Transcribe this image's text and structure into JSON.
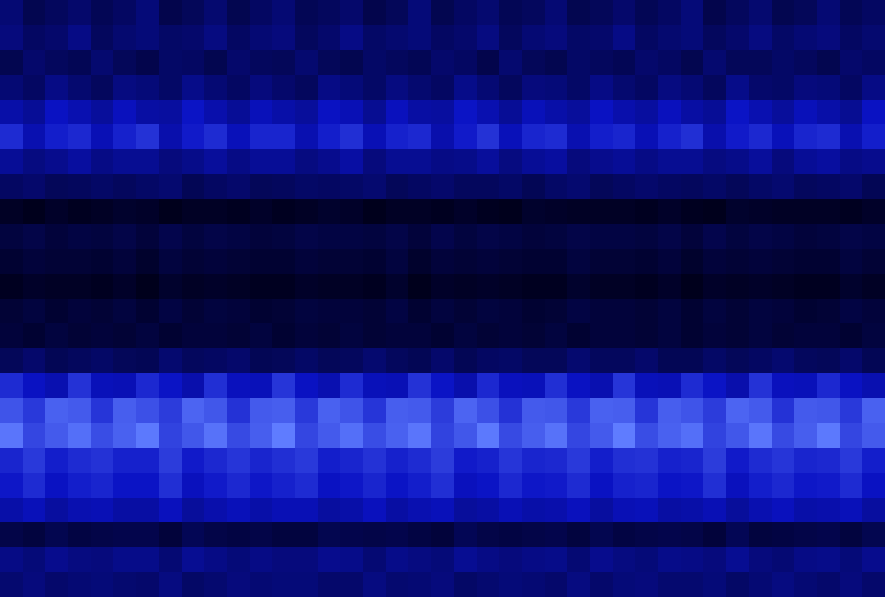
{
  "chart_data": {
    "type": "heatmap",
    "tick_labels": false,
    "cells": [
      [
        32,
        24,
        27,
        30,
        25,
        28,
        33,
        23,
        26,
        31,
        24,
        28,
        32,
        25,
        27,
        30,
        23,
        26,
        33,
        24,
        28,
        31,
        25,
        27,
        32,
        24,
        26,
        30,
        25,
        28,
        33,
        23,
        27,
        31,
        24,
        26,
        32,
        25,
        28
      ],
      [
        34,
        28,
        30,
        36,
        27,
        31,
        33,
        29,
        30,
        35,
        28,
        32,
        34,
        27,
        30,
        36,
        29,
        31,
        33,
        28,
        30,
        35,
        27,
        32,
        34,
        29,
        30,
        36,
        28,
        31,
        33,
        27,
        30,
        35,
        29,
        32,
        34,
        28,
        31
      ],
      [
        24,
        30,
        27,
        25,
        31,
        26,
        23,
        29,
        28,
        24,
        30,
        27,
        26,
        31,
        26,
        24,
        29,
        27,
        25,
        30,
        28,
        23,
        31,
        26,
        24,
        29,
        27,
        25,
        30,
        28,
        24,
        31,
        26,
        26,
        29,
        27,
        24,
        30,
        28
      ],
      [
        32,
        28,
        36,
        31,
        27,
        35,
        33,
        29,
        37,
        32,
        28,
        34,
        30,
        27,
        36,
        33,
        29,
        35,
        31,
        28,
        37,
        32,
        27,
        34,
        33,
        29,
        36,
        31,
        28,
        35,
        32,
        27,
        37,
        30,
        29,
        34,
        33,
        28,
        36
      ],
      [
        44,
        40,
        50,
        46,
        41,
        49,
        43,
        42,
        51,
        45,
        40,
        48,
        44,
        41,
        50,
        47,
        39,
        49,
        43,
        42,
        51,
        46,
        40,
        48,
        44,
        41,
        50,
        45,
        42,
        49,
        43,
        40,
        51,
        46,
        41,
        48,
        44,
        39,
        50
      ],
      [
        58,
        46,
        54,
        57,
        47,
        55,
        60,
        45,
        53,
        58,
        48,
        56,
        56,
        46,
        54,
        59,
        47,
        55,
        57,
        45,
        53,
        60,
        48,
        56,
        58,
        46,
        54,
        56,
        47,
        55,
        59,
        45,
        53,
        57,
        48,
        56,
        58,
        46,
        54
      ],
      [
        40,
        35,
        38,
        42,
        36,
        39,
        39,
        34,
        37,
        41,
        36,
        40,
        40,
        35,
        38,
        43,
        34,
        39,
        39,
        36,
        37,
        41,
        35,
        40,
        42,
        34,
        38,
        40,
        36,
        39,
        39,
        35,
        37,
        41,
        34,
        40,
        42,
        36,
        38
      ],
      [
        28,
        30,
        26,
        27,
        29,
        27,
        29,
        31,
        25,
        28,
        30,
        26,
        27,
        29,
        28,
        29,
        31,
        26,
        28,
        30,
        27,
        27,
        29,
        25,
        29,
        31,
        26,
        28,
        30,
        28,
        27,
        29,
        26,
        29,
        31,
        27,
        28,
        30,
        25
      ],
      [
        14,
        12,
        15,
        13,
        14,
        16,
        15,
        12,
        14,
        14,
        13,
        15,
        13,
        14,
        16,
        15,
        12,
        14,
        14,
        13,
        15,
        13,
        12,
        16,
        15,
        14,
        14,
        14,
        13,
        15,
        13,
        12,
        16,
        15,
        14,
        14,
        14,
        13,
        15
      ],
      [
        20,
        22,
        19,
        21,
        20,
        22,
        19,
        23,
        20,
        22,
        21,
        19,
        20,
        22,
        21,
        21,
        20,
        22,
        19,
        23,
        20,
        22,
        21,
        19,
        20,
        22,
        21,
        21,
        20,
        22,
        19,
        23,
        20,
        22,
        21,
        19,
        20,
        22,
        21
      ],
      [
        17,
        19,
        18,
        18,
        17,
        19,
        16,
        20,
        18,
        19,
        18,
        17,
        17,
        19,
        18,
        18,
        17,
        20,
        16,
        19,
        18,
        19,
        18,
        17,
        17,
        20,
        18,
        18,
        17,
        19,
        16,
        19,
        18,
        19,
        18,
        17,
        17,
        20,
        18
      ],
      [
        13,
        15,
        14,
        14,
        13,
        15,
        12,
        16,
        14,
        15,
        14,
        13,
        13,
        15,
        14,
        14,
        13,
        16,
        12,
        15,
        14,
        15,
        14,
        13,
        13,
        16,
        14,
        14,
        13,
        15,
        12,
        15,
        14,
        15,
        14,
        13,
        13,
        16,
        14
      ],
      [
        18,
        20,
        17,
        19,
        18,
        20,
        17,
        21,
        18,
        20,
        19,
        17,
        18,
        20,
        19,
        19,
        18,
        21,
        17,
        20,
        18,
        20,
        19,
        17,
        18,
        21,
        19,
        19,
        18,
        20,
        17,
        20,
        18,
        20,
        19,
        17,
        18,
        21,
        19
      ],
      [
        19,
        17,
        20,
        18,
        19,
        18,
        20,
        17,
        19,
        19,
        18,
        20,
        17,
        19,
        18,
        20,
        18,
        19,
        19,
        17,
        20,
        18,
        19,
        18,
        20,
        17,
        19,
        19,
        18,
        20,
        17,
        19,
        18,
        20,
        18,
        19,
        19,
        17,
        20
      ],
      [
        26,
        30,
        25,
        27,
        29,
        26,
        25,
        31,
        27,
        28,
        30,
        25,
        26,
        29,
        26,
        27,
        31,
        27,
        25,
        30,
        25,
        28,
        29,
        26,
        26,
        31,
        27,
        27,
        30,
        25,
        25,
        29,
        26,
        28,
        31,
        27,
        26,
        30,
        25
      ],
      [
        58,
        50,
        46,
        60,
        48,
        47,
        57,
        51,
        45,
        59,
        49,
        48,
        61,
        50,
        46,
        58,
        48,
        47,
        60,
        51,
        45,
        57,
        49,
        48,
        59,
        50,
        46,
        61,
        48,
        47,
        58,
        51,
        45,
        60,
        49,
        48,
        57,
        50,
        46
      ],
      [
        70,
        62,
        74,
        72,
        61,
        73,
        69,
        63,
        75,
        71,
        60,
        72,
        73,
        62,
        74,
        70,
        61,
        73,
        72,
        63,
        75,
        69,
        60,
        72,
        71,
        62,
        74,
        73,
        61,
        73,
        70,
        63,
        75,
        72,
        60,
        72,
        71,
        62,
        74
      ],
      [
        80,
        66,
        72,
        78,
        68,
        74,
        81,
        65,
        71,
        79,
        67,
        73,
        82,
        66,
        72,
        78,
        68,
        74,
        80,
        65,
        71,
        81,
        67,
        73,
        79,
        66,
        72,
        82,
        68,
        74,
        78,
        65,
        71,
        80,
        67,
        73,
        81,
        66,
        72
      ],
      [
        56,
        62,
        54,
        58,
        60,
        55,
        55,
        63,
        53,
        57,
        61,
        56,
        59,
        62,
        54,
        56,
        60,
        55,
        58,
        63,
        53,
        55,
        61,
        56,
        57,
        62,
        54,
        59,
        60,
        55,
        56,
        63,
        53,
        58,
        61,
        56,
        57,
        62,
        54
      ],
      [
        52,
        58,
        50,
        54,
        56,
        51,
        51,
        59,
        49,
        53,
        57,
        52,
        55,
        58,
        50,
        52,
        56,
        51,
        54,
        59,
        49,
        51,
        57,
        52,
        53,
        58,
        50,
        55,
        56,
        51,
        52,
        59,
        49,
        54,
        57,
        52,
        53,
        58,
        50
      ],
      [
        44,
        48,
        42,
        46,
        47,
        43,
        43,
        49,
        41,
        45,
        48,
        44,
        47,
        47,
        42,
        44,
        49,
        43,
        46,
        48,
        41,
        43,
        47,
        44,
        45,
        49,
        42,
        47,
        48,
        43,
        44,
        47,
        41,
        46,
        49,
        44,
        45,
        48,
        42
      ],
      [
        22,
        20,
        24,
        21,
        22,
        23,
        23,
        19,
        25,
        22,
        21,
        22,
        20,
        20,
        24,
        23,
        22,
        23,
        21,
        19,
        25,
        22,
        21,
        22,
        23,
        20,
        24,
        21,
        22,
        23,
        22,
        19,
        25,
        20,
        21,
        22,
        23,
        20,
        24
      ],
      [
        36,
        33,
        38,
        35,
        34,
        37,
        37,
        32,
        39,
        36,
        33,
        36,
        34,
        34,
        38,
        37,
        32,
        37,
        35,
        33,
        39,
        36,
        34,
        36,
        37,
        32,
        38,
        35,
        33,
        37,
        36,
        34,
        39,
        34,
        32,
        36,
        37,
        33,
        38
      ],
      [
        31,
        34,
        30,
        32,
        33,
        31,
        30,
        35,
        29,
        31,
        34,
        32,
        33,
        33,
        30,
        30,
        35,
        31,
        32,
        34,
        29,
        31,
        33,
        32,
        30,
        35,
        30,
        33,
        34,
        31,
        31,
        33,
        29,
        32,
        35,
        32,
        30,
        34,
        30
      ]
    ]
  }
}
